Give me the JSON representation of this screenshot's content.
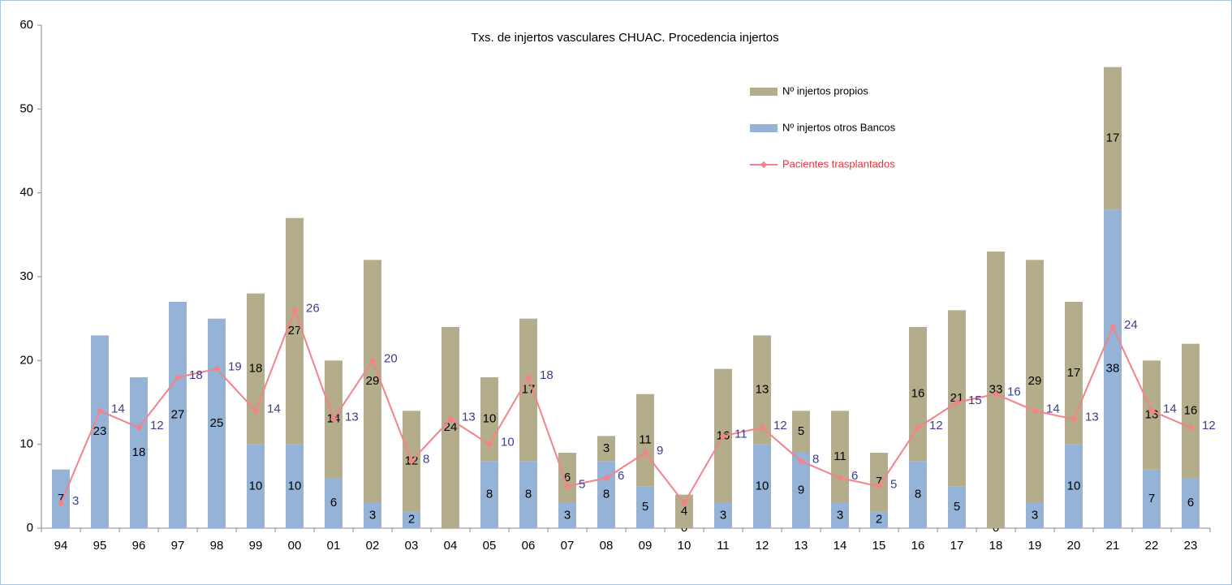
{
  "chart_data": {
    "type": "stacked-bar-line",
    "title": "Txs. de injertos vasculares CHUAC. Procedencia injertos",
    "categories": [
      "94",
      "95",
      "96",
      "97",
      "98",
      "99",
      "00",
      "01",
      "02",
      "03",
      "04",
      "05",
      "06",
      "07",
      "08",
      "09",
      "10",
      "11",
      "12",
      "13",
      "14",
      "15",
      "16",
      "17",
      "18",
      "19",
      "20",
      "21",
      "22",
      "23"
    ],
    "series": [
      {
        "name": "Nº injertos otros Bancos",
        "color": "#95b3d7",
        "kind": "bar",
        "values": [
          7,
          23,
          18,
          27,
          25,
          10,
          10,
          6,
          3,
          2,
          0,
          8,
          8,
          3,
          8,
          5,
          0,
          3,
          10,
          9,
          3,
          2,
          8,
          5,
          0,
          3,
          10,
          38,
          7,
          6
        ],
        "value_labels": [
          "7",
          "23",
          "18",
          "27",
          "25",
          "10",
          "10",
          "6",
          "3",
          "2",
          null,
          "8",
          "8",
          "3",
          "8",
          "5",
          "0",
          "3",
          "10",
          "9",
          "3",
          "2",
          "8",
          "5",
          "0",
          "3",
          "10",
          "38",
          "7",
          "6"
        ]
      },
      {
        "name": "Nº injertos propios",
        "color": "#b4ad8c",
        "kind": "bar",
        "values": [
          0,
          0,
          0,
          0,
          0,
          18,
          27,
          14,
          29,
          12,
          24,
          10,
          17,
          6,
          3,
          11,
          4,
          16,
          13,
          5,
          11,
          7,
          16,
          21,
          33,
          29,
          17,
          17,
          13,
          16
        ],
        "value_labels": [
          null,
          null,
          null,
          null,
          null,
          "18",
          "27",
          "14",
          "29",
          "12",
          "24",
          "10",
          "17",
          "6",
          "3",
          "11",
          "4",
          "16",
          "13",
          "5",
          "11",
          "7",
          "16",
          "21",
          "33",
          "29",
          "17",
          "17",
          "13",
          "16"
        ]
      },
      {
        "name": "Pacientes trasplantados",
        "color": "#f4828a",
        "kind": "line",
        "values": [
          3,
          14,
          12,
          18,
          19,
          14,
          26,
          13,
          20,
          8,
          13,
          10,
          18,
          5,
          6,
          9,
          3,
          11,
          12,
          8,
          6,
          5,
          12,
          15,
          16,
          14,
          13,
          24,
          14,
          12
        ],
        "value_labels": [
          "3",
          "14",
          "12",
          "18",
          "19",
          "14",
          "26",
          "13",
          "20",
          "8",
          "13",
          "10",
          "18",
          "5",
          "6",
          "9",
          null,
          "11",
          "12",
          "8",
          "6",
          "5",
          "12",
          "15",
          "16",
          "14",
          "13",
          "24",
          "14",
          "12"
        ]
      }
    ],
    "ylim": [
      0,
      60
    ],
    "yticks": [
      0,
      10,
      20,
      30,
      40,
      50,
      60
    ],
    "legend": "upper-right"
  }
}
